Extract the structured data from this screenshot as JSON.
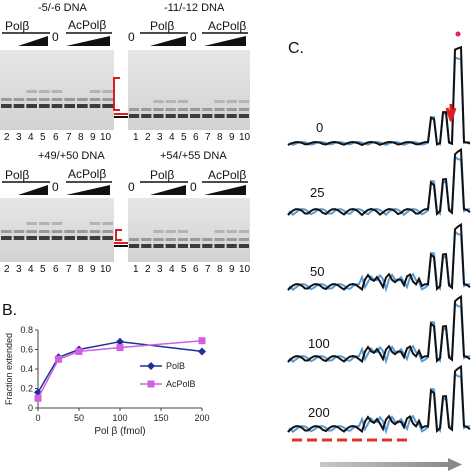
{
  "gels": [
    {
      "title": "-5/-6 DNA",
      "enzyme1": "Polβ",
      "zero": "0",
      "enzyme2": "AcPolβ",
      "lanes": [
        "2",
        "3",
        "4",
        "5",
        "6",
        "7",
        "8",
        "9",
        "10"
      ]
    },
    {
      "title": "-11/-12 DNA",
      "enzyme1": "Polβ",
      "zero": "0",
      "enzyme2": "AcPolβ",
      "lanes": [
        "1",
        "2",
        "3",
        "4",
        "5",
        "6",
        "7",
        "8",
        "9",
        "10"
      ]
    },
    {
      "title": "+49/+50 DNA",
      "enzyme1": "Polβ",
      "zero": "0",
      "enzyme2": "AcPolβ",
      "lanes": [
        "2",
        "3",
        "4",
        "5",
        "6",
        "7",
        "8",
        "9",
        "10"
      ]
    },
    {
      "title": "+54/+55 DNA",
      "enzyme1": "Polβ",
      "zero": "0",
      "enzyme2": "AcPolβ",
      "lanes": [
        "1",
        "2",
        "3",
        "4",
        "5",
        "6",
        "7",
        "8",
        "9",
        "10"
      ]
    }
  ],
  "panel_b": {
    "letter": "B."
  },
  "panel_c": {
    "letter": "C.",
    "trace_labels": [
      "0",
      "25",
      "50",
      "100",
      "200"
    ]
  },
  "chart_data": {
    "type": "line",
    "x": [
      0,
      25,
      50,
      100,
      200
    ],
    "series": [
      {
        "name": "PolB",
        "values": [
          0.16,
          0.52,
          0.6,
          0.68,
          0.58
        ],
        "color": "#1f2f9a",
        "marker": "diamond"
      },
      {
        "name": "AcPolB",
        "values": [
          0.1,
          0.5,
          0.58,
          0.62,
          0.69
        ],
        "color": "#d060e0",
        "marker": "square"
      }
    ],
    "xlabel": "Pol β (fmol)",
    "ylabel": "Fraction extended",
    "xlim": [
      0,
      200
    ],
    "ylim": [
      0,
      0.8
    ],
    "xticks": [
      "0",
      "50",
      "100",
      "150",
      "200"
    ],
    "yticks": [
      "0",
      "0.2",
      "0.4",
      "0.6",
      "0.8"
    ],
    "legend_position": "right",
    "grid": false
  },
  "colors": {
    "polb": "#1f2f9a",
    "acpolb": "#d060e0",
    "marker_red": "#d82020",
    "trace_black": "#111111",
    "trace_blue": "#5b9bd5"
  }
}
